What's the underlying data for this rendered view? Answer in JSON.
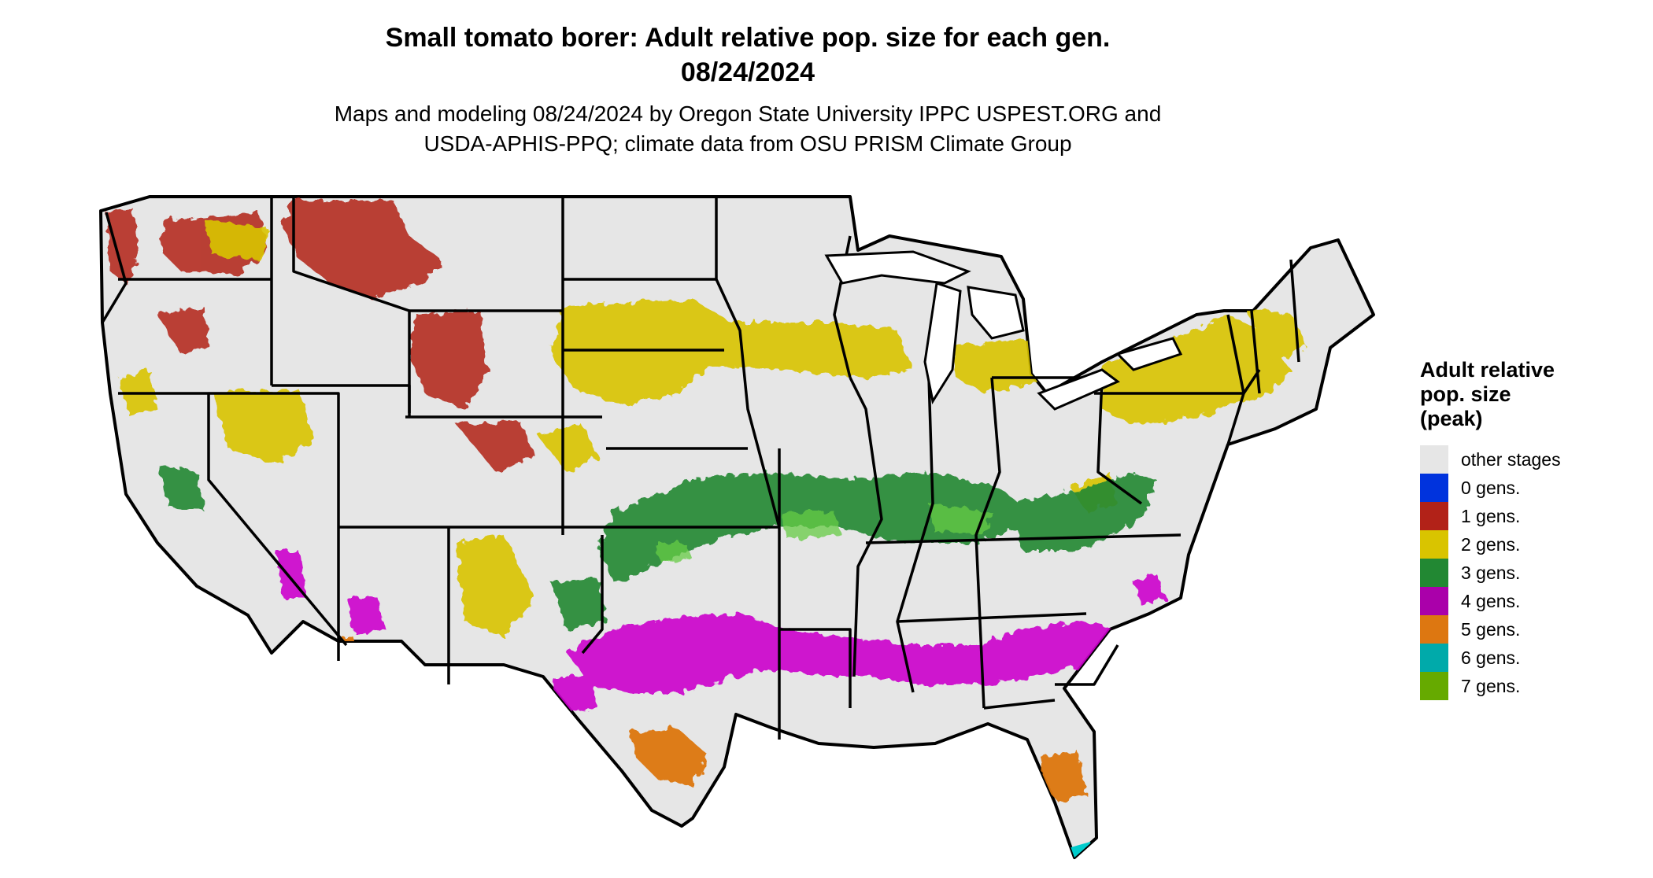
{
  "title_line1": "Small tomato borer: Adult relative pop. size for each gen.",
  "title_line2": "08/24/2024",
  "subtitle_line1": "Maps and modeling 08/24/2024 by Oregon State University IPPC USPEST.ORG and",
  "subtitle_line2": "USDA-APHIS-PPQ; climate data from OSU PRISM Climate Group",
  "legend": {
    "title_lines": [
      "Adult relative",
      "pop. size",
      "(peak)"
    ],
    "items": [
      {
        "label": "other stages",
        "color": "#e6e6e6"
      },
      {
        "label": "0 gens.",
        "color": "#0033dd"
      },
      {
        "label": "1 gens.",
        "color": "#b22218"
      },
      {
        "label": "2 gens.",
        "color": "#d9c400"
      },
      {
        "label": "3 gens.",
        "color": "#228833"
      },
      {
        "label": "4 gens.",
        "color": "#aa00aa"
      },
      {
        "label": "5 gens.",
        "color": "#dd7711"
      },
      {
        "label": "6 gens.",
        "color": "#00aaaa"
      },
      {
        "label": "7 gens.",
        "color": "#66aa00"
      }
    ]
  },
  "map": {
    "background": "#e6e6e6",
    "border_color": "#000000"
  }
}
